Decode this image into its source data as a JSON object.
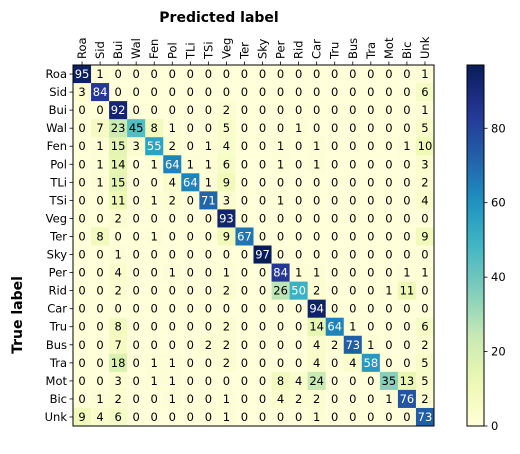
{
  "chart_data": {
    "type": "heatmap",
    "title": "Predicted label",
    "xlabel": "Predicted label",
    "ylabel": "True label",
    "x_categories": [
      "Roa",
      "Sid",
      "Bui",
      "Wal",
      "Fen",
      "Pol",
      "TLi",
      "TSi",
      "Veg",
      "Ter",
      "Sky",
      "Per",
      "Rid",
      "Car",
      "Tru",
      "Bus",
      "Tra",
      "Mot",
      "Bic",
      "Unk"
    ],
    "y_categories": [
      "Roa",
      "Sid",
      "Bui",
      "Wal",
      "Fen",
      "Pol",
      "TLi",
      "TSi",
      "Veg",
      "Ter",
      "Sky",
      "Per",
      "Rid",
      "Car",
      "Tru",
      "Bus",
      "Tra",
      "Mot",
      "Bic",
      "Unk"
    ],
    "values": [
      [
        95,
        1,
        0,
        0,
        0,
        0,
        0,
        0,
        0,
        0,
        0,
        0,
        0,
        0,
        0,
        0,
        0,
        0,
        0,
        1
      ],
      [
        3,
        84,
        0,
        0,
        0,
        0,
        0,
        0,
        0,
        0,
        0,
        0,
        0,
        0,
        0,
        0,
        0,
        0,
        0,
        6
      ],
      [
        0,
        0,
        92,
        0,
        0,
        0,
        0,
        0,
        2,
        0,
        0,
        0,
        0,
        0,
        0,
        0,
        0,
        0,
        0,
        1
      ],
      [
        0,
        7,
        23,
        45,
        8,
        1,
        0,
        0,
        5,
        0,
        0,
        0,
        1,
        0,
        0,
        0,
        0,
        0,
        0,
        5
      ],
      [
        0,
        1,
        15,
        3,
        55,
        2,
        0,
        1,
        4,
        0,
        0,
        1,
        0,
        1,
        0,
        0,
        0,
        0,
        1,
        10
      ],
      [
        0,
        1,
        14,
        0,
        1,
        64,
        1,
        1,
        6,
        0,
        0,
        1,
        0,
        1,
        0,
        0,
        0,
        0,
        0,
        3
      ],
      [
        0,
        1,
        15,
        0,
        0,
        4,
        64,
        1,
        9,
        0,
        0,
        0,
        0,
        0,
        0,
        0,
        0,
        0,
        0,
        2
      ],
      [
        0,
        0,
        11,
        0,
        1,
        2,
        0,
        71,
        3,
        0,
        0,
        1,
        0,
        0,
        0,
        0,
        0,
        0,
        0,
        4
      ],
      [
        0,
        0,
        2,
        0,
        0,
        0,
        0,
        0,
        93,
        0,
        0,
        0,
        0,
        0,
        0,
        0,
        0,
        0,
        0,
        0
      ],
      [
        0,
        8,
        0,
        0,
        1,
        0,
        0,
        0,
        9,
        67,
        0,
        0,
        0,
        0,
        0,
        0,
        0,
        0,
        0,
        9
      ],
      [
        0,
        0,
        1,
        0,
        0,
        0,
        0,
        0,
        0,
        0,
        97,
        0,
        0,
        0,
        0,
        0,
        0,
        0,
        0,
        0
      ],
      [
        0,
        0,
        4,
        0,
        0,
        1,
        0,
        0,
        1,
        0,
        0,
        84,
        1,
        1,
        0,
        0,
        0,
        0,
        1,
        1
      ],
      [
        0,
        0,
        2,
        0,
        0,
        0,
        0,
        0,
        2,
        0,
        0,
        26,
        50,
        2,
        0,
        0,
        0,
        1,
        11,
        0
      ],
      [
        0,
        0,
        0,
        0,
        0,
        0,
        0,
        0,
        0,
        0,
        0,
        0,
        0,
        94,
        0,
        0,
        0,
        0,
        0,
        0
      ],
      [
        0,
        0,
        8,
        0,
        0,
        0,
        0,
        0,
        2,
        0,
        0,
        0,
        0,
        14,
        64,
        1,
        0,
        0,
        0,
        6
      ],
      [
        0,
        0,
        7,
        0,
        0,
        0,
        0,
        2,
        2,
        0,
        0,
        0,
        0,
        4,
        2,
        73,
        1,
        0,
        0,
        2
      ],
      [
        0,
        0,
        18,
        0,
        1,
        1,
        0,
        0,
        2,
        0,
        0,
        0,
        0,
        4,
        0,
        4,
        58,
        0,
        0,
        5
      ],
      [
        0,
        0,
        3,
        0,
        1,
        1,
        0,
        0,
        0,
        0,
        0,
        8,
        4,
        24,
        0,
        0,
        0,
        35,
        13,
        5
      ],
      [
        0,
        1,
        2,
        0,
        0,
        1,
        0,
        0,
        1,
        0,
        0,
        4,
        2,
        2,
        0,
        0,
        0,
        1,
        76,
        2
      ],
      [
        9,
        4,
        6,
        0,
        0,
        0,
        0,
        0,
        1,
        0,
        0,
        0,
        0,
        1,
        0,
        0,
        0,
        0,
        0,
        73
      ]
    ],
    "colorbar_ticks": [
      0,
      20,
      40,
      60,
      80
    ],
    "vmin": 0,
    "vmax": 97,
    "colormap": "YlGnBu"
  }
}
